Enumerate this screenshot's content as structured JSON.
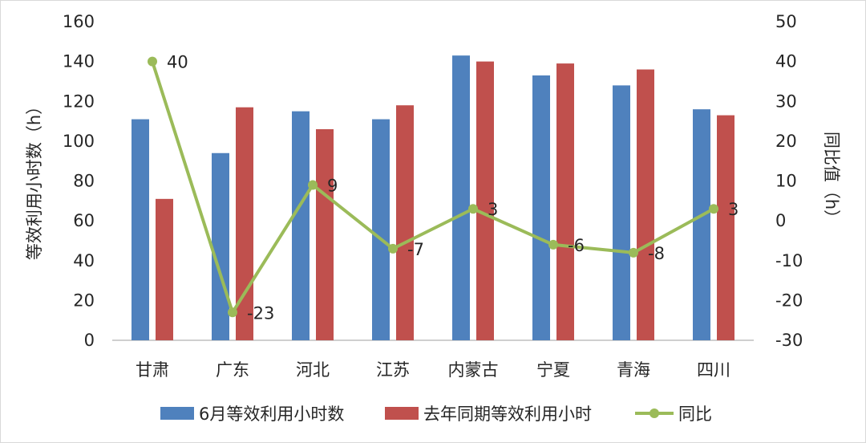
{
  "chart_data": {
    "type": "bar",
    "categories": [
      "甘肃",
      "广东",
      "河北",
      "江苏",
      "内蒙古",
      "宁夏",
      "青海",
      "四川"
    ],
    "series": [
      {
        "name": "6月等效利用小时数",
        "type": "bar",
        "axis": "left",
        "color": "#4f81bd",
        "values": [
          111,
          94,
          115,
          111,
          143,
          133,
          128,
          116
        ]
      },
      {
        "name": "去年同期等效利用小时",
        "type": "bar",
        "axis": "left",
        "color": "#c0504d",
        "values": [
          71,
          117,
          106,
          118,
          140,
          139,
          136,
          113
        ]
      },
      {
        "name": "同比",
        "type": "line",
        "axis": "right",
        "color": "#9bbb59",
        "values": [
          40,
          -23,
          9,
          -7,
          3,
          -6,
          -8,
          3
        ],
        "labels": [
          "40",
          "-23",
          "9",
          "-7",
          "3",
          "-6",
          "-8",
          "3"
        ]
      }
    ],
    "ylabel": "等效利用小时数（h）",
    "y2label": "同比值（h）",
    "ylim": [
      0,
      160
    ],
    "y2lim": [
      -30,
      50
    ],
    "yticks": [
      "0",
      "20",
      "40",
      "60",
      "80",
      "100",
      "120",
      "140",
      "160"
    ],
    "y2ticks": [
      "-30",
      "-20",
      "-10",
      "0",
      "10",
      "20",
      "30",
      "40",
      "50"
    ],
    "grid": false,
    "legend_position": "bottom"
  }
}
